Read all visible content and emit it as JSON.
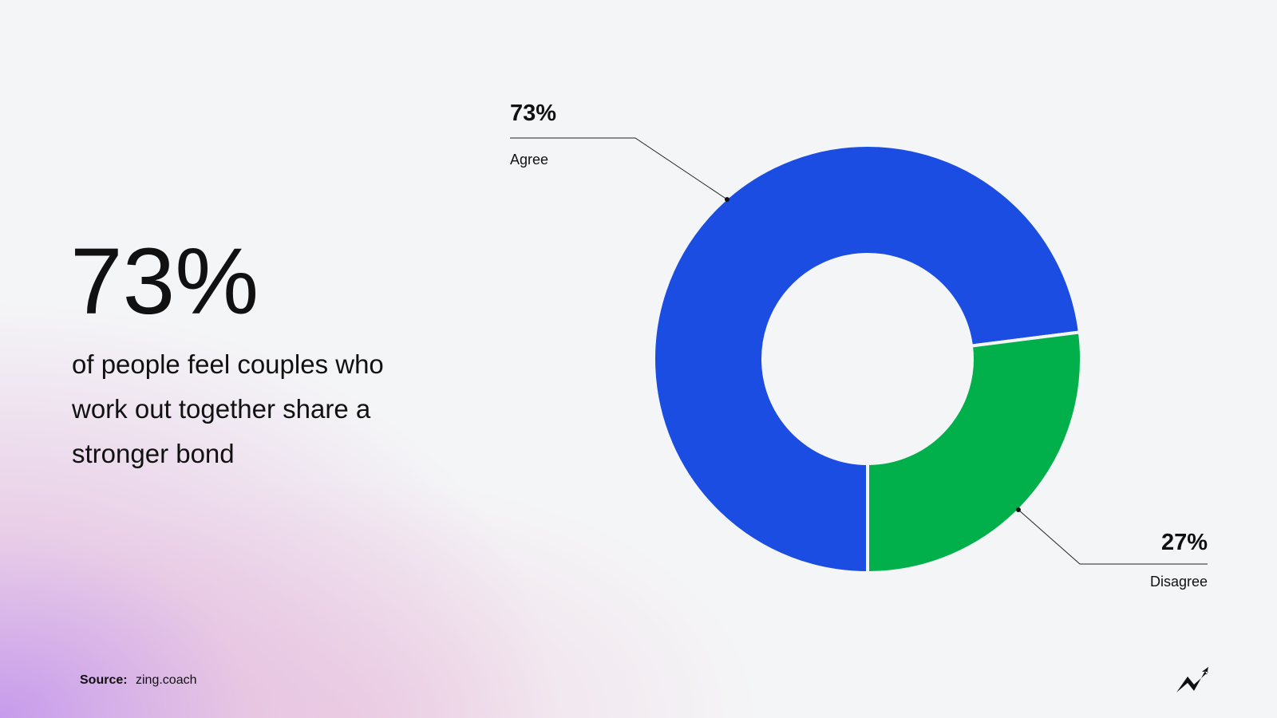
{
  "headline": "73%",
  "description": [
    "of people feel couples who",
    "work out together share a",
    "stronger bond"
  ],
  "source": {
    "label": "Source:",
    "text": "zing.coach"
  },
  "chart_data": {
    "type": "donut",
    "categories": [
      "Agree",
      "Disagree"
    ],
    "values": [
      73,
      27
    ],
    "value_labels": [
      "73%",
      "27%"
    ],
    "colors": [
      "#1c4de3",
      "#02b04b"
    ]
  }
}
